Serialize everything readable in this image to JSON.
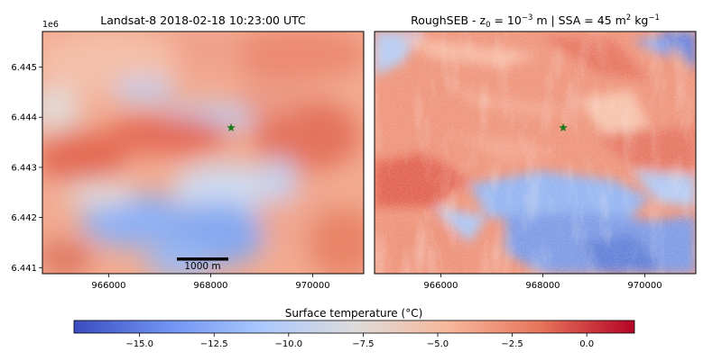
{
  "chart_data": [
    {
      "type": "heatmap",
      "title": "Landsat-8  2018-02-18 10:23:00  UTC",
      "x_ticks": [
        "966000",
        "968000",
        "970000"
      ],
      "x_tick_values": [
        966000,
        968000,
        970000
      ],
      "y_ticks": [
        "6.441",
        "6.442",
        "6.443",
        "6.444",
        "6.445"
      ],
      "y_tick_values": [
        6.441,
        6.442,
        6.443,
        6.444,
        6.445
      ],
      "y_offset": "1e6",
      "xlim": [
        964700,
        971000
      ],
      "ylim": [
        6.44088,
        6.44571
      ],
      "marker": {
        "symbol": "star",
        "x": 968400,
        "y": 6.44379,
        "color": "#1a7a1a"
      },
      "scalebar": {
        "label": "1000 m"
      }
    },
    {
      "type": "heatmap",
      "title_parts": {
        "prefix": "RoughSEB - z",
        "sub": "0",
        "mid": " = 10",
        "sup": "−3",
        "suffix": " m  |  SSA = 45 m",
        "unit_sup": "2",
        "unit_mid": " kg",
        "unit_sup2": "−1"
      },
      "x_ticks": [
        "966000",
        "968000",
        "970000"
      ],
      "x_tick_values": [
        966000,
        968000,
        970000
      ],
      "xlim": [
        964700,
        971000
      ],
      "ylim": [
        6.44088,
        6.44571
      ],
      "marker": {
        "symbol": "star",
        "x": 968400,
        "y": 6.44379,
        "color": "#1a7a1a"
      }
    }
  ],
  "colorbar": {
    "label": "Surface temperature (°C)",
    "ticks": [
      "−15.0",
      "−12.5",
      "−10.0",
      "−7.5",
      "−5.0",
      "−2.5",
      "0.0"
    ],
    "tick_values": [
      -15.0,
      -12.5,
      -10.0,
      -7.5,
      -5.0,
      -2.5,
      0.0
    ],
    "vmin": -17.2,
    "vmax": 1.6,
    "colormap": "coolwarm",
    "colors": [
      "#3b4cc0",
      "#6f92f3",
      "#aac7fd",
      "#dddcdc",
      "#f7b89c",
      "#e7745b",
      "#b40426"
    ]
  }
}
